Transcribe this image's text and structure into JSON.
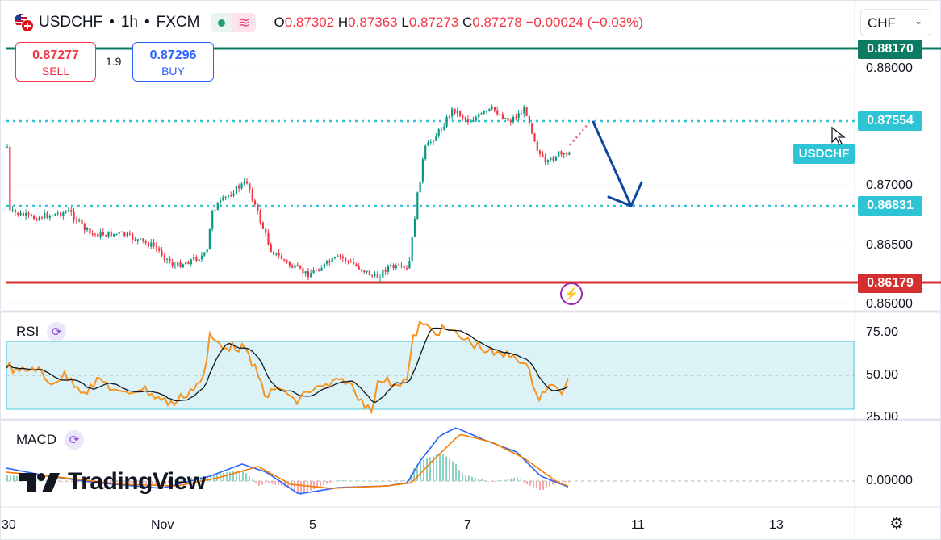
{
  "header": {
    "symbol": "USDCHF",
    "sep1": "•",
    "interval": "1h",
    "sep2": "•",
    "exchange": "FXCM",
    "ohlc": {
      "o_label": "O",
      "o": "0.87302",
      "h_label": "H",
      "h": "0.87363",
      "l_label": "L",
      "l": "0.87273",
      "c_label": "C",
      "c": "0.87278",
      "change": "−0.00024 (−0.03%)"
    }
  },
  "trade": {
    "sell_price": "0.87277",
    "sell_label": "SELL",
    "spread": "1.9",
    "buy_price": "0.87296",
    "buy_label": "BUY"
  },
  "currency_select": "CHF",
  "price_axis": {
    "ticks": [
      "0.88000",
      "0.87000",
      "0.86500",
      "0.86000"
    ],
    "resistance": {
      "value": "0.88170",
      "color": "#0d7a63"
    },
    "level_upper": {
      "value": "0.87554",
      "color": "#2ec4d6"
    },
    "level_lower": {
      "value": "0.86831",
      "color": "#2ec4d6"
    },
    "support": {
      "value": "0.86179",
      "color": "#d32f2f"
    },
    "symbol_tag": "USDCHF"
  },
  "rsi": {
    "title": "RSI",
    "ticks": [
      "75.00",
      "50.00",
      "25.00"
    ]
  },
  "macd": {
    "title": "MACD",
    "ticks": [
      "0.00000"
    ]
  },
  "time_axis": {
    "labels": [
      "30",
      "Nov",
      "5",
      "7",
      "11",
      "13"
    ]
  },
  "logo": {
    "text": "TradingView"
  },
  "icons": {
    "flags": "usd-chf-flags-icon",
    "status": "market-open-dot-icon",
    "wave": "wave-icon",
    "cycle": "refresh-cycle-icon",
    "flash": "flash-icon",
    "settings": "gear-icon",
    "chevron": "chevron-down-icon",
    "arrow": "forecast-arrow-icon"
  },
  "colors": {
    "up": "#089981",
    "down": "#f23645",
    "rsi_line": "#f7931e",
    "macd_line": "#2962ff",
    "signal_line": "#f57c00",
    "forecast_arrow": "#0d47a1"
  }
}
